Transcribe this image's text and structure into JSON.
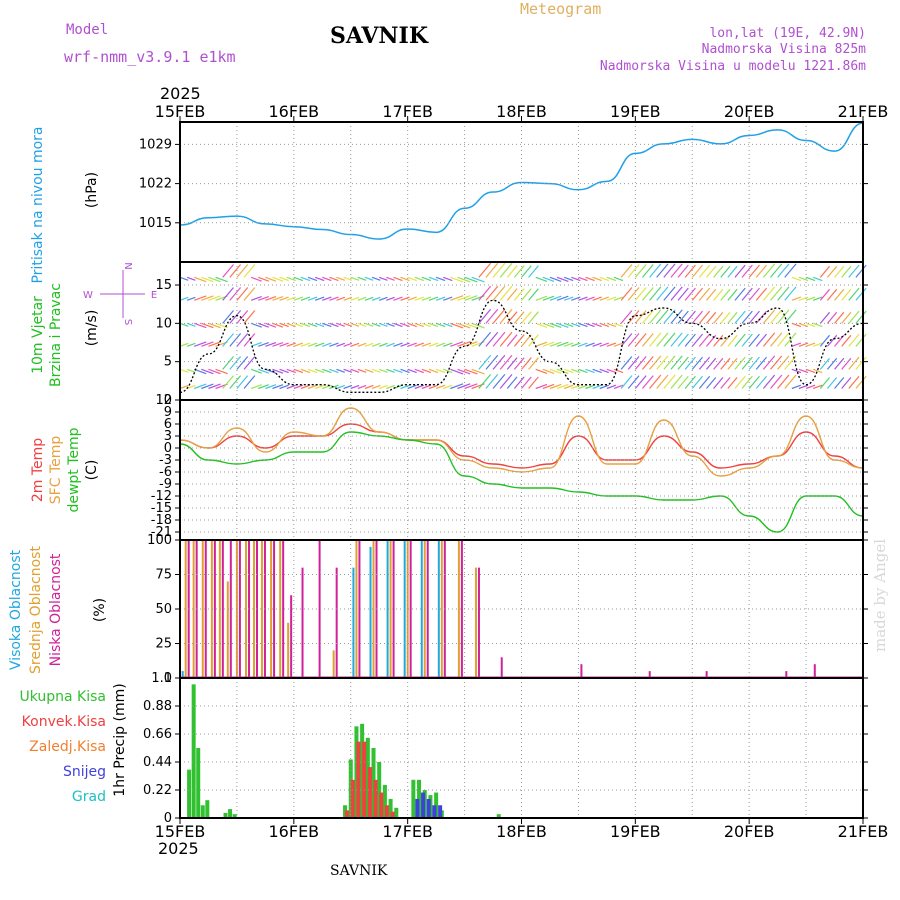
{
  "header": {
    "model_label": "Model",
    "model_name": "wrf-nmm_v3.9.1  e1km",
    "title": "SAVNIK",
    "subtitle": "Meteogram",
    "coords": "lon,lat (19E, 42.9N)",
    "elevation": "Nadmorska Visina 825m",
    "model_elevation": "Nadmorska Visina u modelu 1221.86m",
    "year_top": "2025",
    "year_bottom": "2025",
    "footer": "SAVNIK",
    "watermark": "made by Angel"
  },
  "colors": {
    "pressure": "#1fa0e8",
    "temp2m": "#f04040",
    "sfc": "#e8a040",
    "dewpt": "#20c020",
    "high_cloud": "#20a8e0",
    "mid_cloud": "#e0a030",
    "low_cloud": "#d0209a",
    "precip_total": "#30c030",
    "precip_conv": "#f04040",
    "precip_graup": "#f08030",
    "snow": "#4040e0",
    "hail": "#20c0c0",
    "purple_text": "#b050d0",
    "orange_text": "#e0b060"
  },
  "chart_data": [
    {
      "type": "line",
      "id": "pressure",
      "ylabel_main": "Pritisak na nivou mora",
      "ylabel_unit": "(hPa)",
      "ylim": [
        1008,
        1033
      ],
      "yticks": [
        "1015",
        "1022",
        "1029"
      ],
      "x_categories": [
        "15FEB",
        "16FEB",
        "17FEB",
        "18FEB",
        "19FEB",
        "20FEB",
        "21FEB"
      ],
      "x_days": [
        0,
        0.25,
        0.5,
        0.75,
        1,
        1.25,
        1.5,
        1.75,
        2,
        2.25,
        2.5,
        2.75,
        3,
        3.25,
        3.5,
        3.75,
        4,
        4.25,
        4.5,
        4.75,
        5,
        5.25,
        5.5,
        5.75,
        6
      ],
      "values": [
        1014.6,
        1015.9,
        1016.2,
        1014.8,
        1014.3,
        1013.8,
        1012.9,
        1012.1,
        1013.9,
        1013.3,
        1017.6,
        1020.5,
        1022.2,
        1022.0,
        1020.9,
        1022.4,
        1027.4,
        1029.1,
        1029.9,
        1029.1,
        1030.6,
        1031.6,
        1029.7,
        1027.8,
        1032.8
      ]
    },
    {
      "type": "line",
      "id": "wind",
      "ylabel_lines": [
        "10m Vjetar",
        "Brzina i Pravac"
      ],
      "ylabel_unit": "(m/s)",
      "compass": [
        "N",
        "W",
        "E",
        "S"
      ],
      "ylim": [
        0,
        18
      ],
      "yticks": [
        "0",
        "5",
        "10",
        "15"
      ],
      "x_days": [
        0,
        0.25,
        0.5,
        0.75,
        1,
        1.25,
        1.5,
        1.75,
        2,
        2.25,
        2.5,
        2.75,
        3,
        3.25,
        3.5,
        3.75,
        4,
        4.25,
        4.5,
        4.75,
        5,
        5.25,
        5.5,
        5.75,
        6
      ],
      "speed": [
        1,
        6,
        11,
        4,
        2,
        2,
        1,
        1,
        2,
        2,
        7,
        13,
        9,
        5,
        2,
        2,
        11,
        12,
        10,
        8,
        10,
        12,
        2,
        8,
        10
      ]
    },
    {
      "type": "line",
      "id": "temperature",
      "ylabel_series": [
        "2m Temp",
        "SFC Temp",
        "dewpt Temp"
      ],
      "ylabel_unit": "(C)",
      "ylim": [
        -23,
        12
      ],
      "yticks": [
        "-21",
        "-18",
        "-15",
        "-12",
        "-9",
        "-6",
        "-3",
        "0",
        "3",
        "6",
        "9",
        "12"
      ],
      "x_days": [
        0,
        0.25,
        0.5,
        0.75,
        1,
        1.25,
        1.5,
        1.75,
        2,
        2.25,
        2.5,
        2.75,
        3,
        3.25,
        3.5,
        3.75,
        4,
        4.25,
        4.5,
        4.75,
        5,
        5.25,
        5.5,
        5.75,
        6
      ],
      "series": [
        {
          "name": "2m Temp",
          "values": [
            2,
            0,
            3,
            0,
            3,
            3,
            6,
            4,
            2,
            2,
            -2,
            -4,
            -5,
            -4,
            3,
            -3,
            -3,
            3,
            -1,
            -5,
            -4,
            -2,
            4,
            -2,
            -5
          ]
        },
        {
          "name": "SFC Temp",
          "values": [
            2,
            0,
            5,
            -1,
            4,
            3,
            10,
            4,
            2,
            2,
            -3,
            -5,
            -6,
            -5,
            8,
            -4,
            -4,
            7,
            -2,
            -7,
            -5,
            -2,
            8,
            -3,
            -5
          ]
        },
        {
          "name": "dewpt Temp",
          "values": [
            1,
            -3,
            -4,
            -3,
            -1,
            -1,
            4,
            3,
            2,
            1,
            -7,
            -9,
            -10,
            -10,
            -11,
            -12,
            -12,
            -13,
            -13,
            -12,
            -17,
            -21,
            -12,
            -12,
            -17
          ]
        }
      ]
    },
    {
      "type": "bar",
      "id": "clouds",
      "ylabel_series": [
        "Visoka Oblacnost",
        "Srednja Oblacnost",
        "Niska Oblacnost"
      ],
      "ylabel_unit": "(%)",
      "ylim": [
        0,
        100
      ],
      "yticks": [
        "0",
        "25",
        "50",
        "75",
        "100"
      ],
      "x_days": [
        0.05,
        0.12,
        0.2,
        0.28,
        0.35,
        0.42,
        0.5,
        0.58,
        0.65,
        0.72,
        0.8,
        0.88,
        0.95,
        1.05,
        1.2,
        1.35,
        1.55,
        1.7,
        1.85,
        2.0,
        2.15,
        2.3,
        2.45,
        2.6,
        2.8,
        3.5,
        4.1,
        4.6,
        5.3,
        5.55
      ],
      "series": [
        {
          "name": "Visoka Oblacnost",
          "values": [
            5,
            0,
            0,
            0,
            0,
            0,
            0,
            0,
            0,
            0,
            0,
            0,
            0,
            0,
            0,
            0,
            80,
            95,
            100,
            100,
            100,
            100,
            0,
            0,
            0,
            0,
            0,
            0,
            0,
            0
          ]
        },
        {
          "name": "Srednja Oblacnost",
          "values": [
            100,
            100,
            100,
            100,
            100,
            70,
            100,
            100,
            100,
            100,
            100,
            100,
            40,
            0,
            0,
            20,
            100,
            100,
            100,
            100,
            100,
            100,
            100,
            80,
            0,
            0,
            0,
            0,
            0,
            0
          ]
        },
        {
          "name": "Niska Oblacnost",
          "values": [
            100,
            100,
            100,
            100,
            100,
            100,
            100,
            100,
            100,
            100,
            100,
            100,
            60,
            80,
            100,
            80,
            100,
            100,
            100,
            100,
            100,
            100,
            100,
            80,
            15,
            10,
            5,
            5,
            5,
            10
          ]
        }
      ]
    },
    {
      "type": "bar",
      "id": "precip",
      "legend": [
        "Ukupna  Kisa",
        "Konvek.Kisa",
        "Zaledj.Kisa",
        "Snijeg",
        "Grad"
      ],
      "ylabel": "1hr Precip (mm)",
      "ylim": [
        0,
        1.1
      ],
      "yticks": [
        "0",
        "0.22",
        "0.44",
        "0.66",
        "0.88",
        "1.1"
      ],
      "x_days": [
        0.08,
        0.12,
        0.16,
        0.2,
        0.24,
        0.4,
        0.44,
        0.48,
        1.45,
        1.5,
        1.55,
        1.6,
        1.65,
        1.7,
        1.75,
        1.8,
        1.85,
        1.9,
        2.05,
        2.1,
        2.15,
        2.2,
        2.25,
        2.3,
        2.8
      ],
      "series": [
        {
          "name": "Ukupna  Kisa",
          "values": [
            0.38,
            1.05,
            0.55,
            0.1,
            0.14,
            0.04,
            0.07,
            0.03,
            0.1,
            0.46,
            0.72,
            0.74,
            0.63,
            0.55,
            0.44,
            0.26,
            0.15,
            0.08,
            0.3,
            0.3,
            0.22,
            0.18,
            0.2,
            0.06,
            0.03
          ]
        },
        {
          "name": "Konvek.Kisa",
          "values": [
            0.0,
            0.0,
            0.0,
            0.0,
            0.0,
            0.0,
            0.0,
            0.0,
            0.06,
            0.3,
            0.6,
            0.6,
            0.4,
            0.3,
            0.2,
            0.1,
            0.05,
            0.0,
            0.0,
            0.0,
            0.0,
            0.0,
            0.0,
            0.0,
            0.0
          ]
        },
        {
          "name": "Snijeg",
          "values": [
            0,
            0,
            0,
            0,
            0,
            0,
            0,
            0,
            0,
            0,
            0,
            0,
            0,
            0,
            0,
            0,
            0,
            0,
            0.15,
            0.2,
            0.15,
            0.1,
            0.1,
            0,
            0
          ]
        }
      ]
    }
  ]
}
